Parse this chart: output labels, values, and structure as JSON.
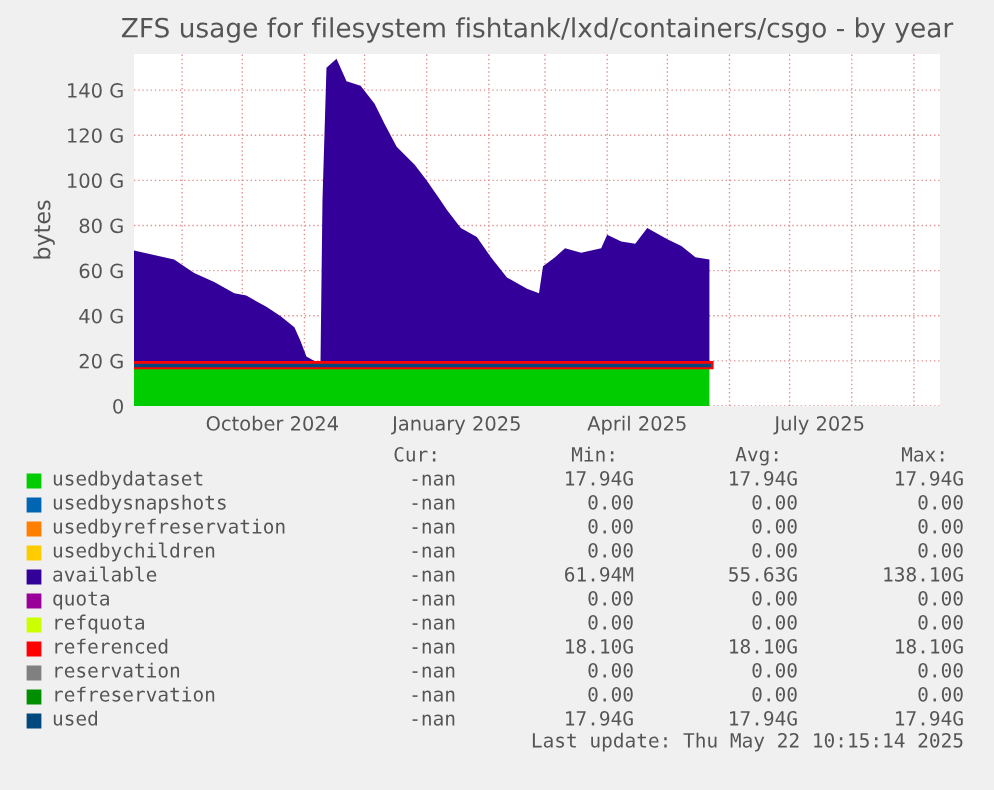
{
  "chart_data": {
    "type": "area",
    "title": "ZFS usage for filesystem fishtank/lxd/containers/csgo - by year",
    "ylabel": "bytes",
    "stacked": true,
    "grid": true,
    "legend": "bottom",
    "x": [
      "2024-08-08",
      "2024-08-18",
      "2024-08-28",
      "2024-09-07",
      "2024-09-17",
      "2024-09-27",
      "2024-10-03",
      "2024-10-13",
      "2024-10-20",
      "2024-10-27",
      "2024-10-30",
      "2024-11-02",
      "2024-11-06",
      "2024-11-09",
      "2024-11-10",
      "2024-11-12",
      "2024-11-17",
      "2024-11-22",
      "2024-11-29",
      "2024-12-06",
      "2024-12-11",
      "2024-12-17",
      "2024-12-26",
      "2025-01-01",
      "2025-01-08",
      "2025-01-11",
      "2025-01-18",
      "2025-01-26",
      "2025-02-02",
      "2025-02-10",
      "2025-02-20",
      "2025-02-26",
      "2025-02-28",
      "2025-03-06",
      "2025-03-11",
      "2025-03-19",
      "2025-03-29",
      "2025-04-01",
      "2025-04-08",
      "2025-04-15",
      "2025-04-21",
      "2025-05-01",
      "2025-05-08",
      "2025-05-15",
      "2025-05-22"
    ],
    "xlim": [
      "2024-08-08",
      "2025-09-14"
    ],
    "xticks": [
      {
        "value": "2024-09-01",
        "label": null
      },
      {
        "value": "2024-10-01",
        "label": null
      },
      {
        "value": "2024-11-01",
        "label": null
      },
      {
        "value": "2024-12-01",
        "label": null
      },
      {
        "value": "2025-01-01",
        "label": null
      },
      {
        "value": "2025-02-01",
        "label": null
      },
      {
        "value": "2025-03-01",
        "label": null
      },
      {
        "value": "2025-04-01",
        "label": null
      },
      {
        "value": "2025-05-01",
        "label": null
      },
      {
        "value": "2025-06-01",
        "label": null
      },
      {
        "value": "2025-07-01",
        "label": null
      },
      {
        "value": "2025-08-01",
        "label": null
      },
      {
        "value": "2025-09-01",
        "label": null
      },
      {
        "value": "2024-10-16",
        "label": "October 2024"
      },
      {
        "value": "2025-01-16",
        "label": "January 2025"
      },
      {
        "value": "2025-04-16",
        "label": "April 2025"
      },
      {
        "value": "2025-07-16",
        "label": "July 2025"
      }
    ],
    "ylim": [
      0,
      156
    ],
    "yticks": [
      0,
      {
        "value": 20,
        "label": "20 G"
      },
      {
        "value": 40,
        "label": "40 G"
      },
      {
        "value": 60,
        "label": "60 G"
      },
      {
        "value": 80,
        "label": "80 G"
      },
      {
        "value": 100,
        "label": "100 G"
      },
      {
        "value": 120,
        "label": "120 G"
      },
      {
        "value": 140,
        "label": "140 G"
      }
    ],
    "series": [
      {
        "name": "usedbydataset",
        "color": "#00cc00",
        "values": [
          17.94,
          17.94,
          17.94,
          17.94,
          17.94,
          17.94,
          17.94,
          17.94,
          17.94,
          17.94,
          17.94,
          17.94,
          17.94,
          17.94,
          17.94,
          17.94,
          17.94,
          17.94,
          17.94,
          17.94,
          17.94,
          17.94,
          17.94,
          17.94,
          17.94,
          17.94,
          17.94,
          17.94,
          17.94,
          17.94,
          17.94,
          17.94,
          17.94,
          17.94,
          17.94,
          17.94,
          17.94,
          17.94,
          17.94,
          17.94,
          17.94,
          17.94,
          17.94,
          17.94,
          17.94
        ]
      },
      {
        "name": "usedbysnapshots",
        "color": "#0066b3",
        "values": [
          null,
          null,
          null,
          null,
          null,
          null,
          null,
          null,
          null,
          null,
          null,
          null,
          null,
          null,
          null,
          null,
          null,
          null,
          null,
          null,
          null,
          null,
          null,
          null,
          null,
          null,
          null,
          null,
          null,
          null,
          null,
          null,
          null,
          null,
          null,
          null,
          null,
          null,
          null,
          null,
          null,
          null,
          null,
          null,
          null
        ]
      },
      {
        "name": "usedbyrefreservation",
        "color": "#ff8000",
        "values": [
          null,
          null,
          null,
          null,
          null,
          null,
          null,
          null,
          null,
          null,
          null,
          null,
          null,
          null,
          null,
          null,
          null,
          null,
          null,
          null,
          null,
          null,
          null,
          null,
          null,
          null,
          null,
          null,
          null,
          null,
          null,
          null,
          null,
          null,
          null,
          null,
          null,
          null,
          null,
          null,
          null,
          null,
          null,
          null,
          null
        ]
      },
      {
        "name": "usedbychildren",
        "color": "#ffcc00",
        "values": [
          null,
          null,
          null,
          null,
          null,
          null,
          null,
          null,
          null,
          null,
          null,
          null,
          null,
          null,
          null,
          null,
          null,
          null,
          null,
          null,
          null,
          null,
          null,
          null,
          null,
          null,
          null,
          null,
          null,
          null,
          null,
          null,
          null,
          null,
          null,
          null,
          null,
          null,
          null,
          null,
          null,
          null,
          null,
          null,
          null
        ]
      },
      {
        "name": "available",
        "color": "#330099",
        "values": [
          51,
          49,
          47,
          41,
          37,
          32,
          31,
          26,
          22,
          17,
          11,
          4,
          2,
          0,
          73,
          132,
          136,
          126,
          124,
          116,
          107,
          97,
          89,
          82,
          73,
          69,
          61,
          57,
          48,
          39,
          34,
          32,
          44,
          48,
          52,
          50,
          52,
          58,
          55,
          54,
          61,
          56,
          53,
          48,
          47
        ]
      },
      {
        "name": "quota",
        "type": "line",
        "color": "#990099",
        "values": [
          null,
          null,
          null,
          null,
          null,
          null,
          null,
          null,
          null,
          null,
          null,
          null,
          null,
          null,
          null,
          null,
          null,
          null,
          null,
          null,
          null,
          null,
          null,
          null,
          null,
          null,
          null,
          null,
          null,
          null,
          null,
          null,
          null,
          null,
          null,
          null,
          null,
          null,
          null,
          null,
          null,
          null,
          null,
          null,
          null
        ]
      },
      {
        "name": "refquota",
        "type": "line",
        "color": "#ccff00",
        "values": [
          null,
          null,
          null,
          null,
          null,
          null,
          null,
          null,
          null,
          null,
          null,
          null,
          null,
          null,
          null,
          null,
          null,
          null,
          null,
          null,
          null,
          null,
          null,
          null,
          null,
          null,
          null,
          null,
          null,
          null,
          null,
          null,
          null,
          null,
          null,
          null,
          null,
          null,
          null,
          null,
          null,
          null,
          null,
          null,
          null
        ]
      },
      {
        "name": "referenced",
        "type": "line",
        "color": "#ff0000",
        "values": [
          18.1,
          18.1,
          18.1,
          18.1,
          18.1,
          18.1,
          18.1,
          18.1,
          18.1,
          18.1,
          18.1,
          18.1,
          18.1,
          18.1,
          18.1,
          18.1,
          18.1,
          18.1,
          18.1,
          18.1,
          18.1,
          18.1,
          18.1,
          18.1,
          18.1,
          18.1,
          18.1,
          18.1,
          18.1,
          18.1,
          18.1,
          18.1,
          18.1,
          18.1,
          18.1,
          18.1,
          18.1,
          18.1,
          18.1,
          18.1,
          18.1,
          18.1,
          18.1,
          18.1,
          18.1
        ]
      },
      {
        "name": "reservation",
        "type": "line",
        "color": "#808080",
        "values": [
          null,
          null,
          null,
          null,
          null,
          null,
          null,
          null,
          null,
          null,
          null,
          null,
          null,
          null,
          null,
          null,
          null,
          null,
          null,
          null,
          null,
          null,
          null,
          null,
          null,
          null,
          null,
          null,
          null,
          null,
          null,
          null,
          null,
          null,
          null,
          null,
          null,
          null,
          null,
          null,
          null,
          null,
          null,
          null,
          null
        ]
      },
      {
        "name": "refreservation",
        "type": "line",
        "color": "#008f00",
        "values": [
          null,
          null,
          null,
          null,
          null,
          null,
          null,
          null,
          null,
          null,
          null,
          null,
          null,
          null,
          null,
          null,
          null,
          null,
          null,
          null,
          null,
          null,
          null,
          null,
          null,
          null,
          null,
          null,
          null,
          null,
          null,
          null,
          null,
          null,
          null,
          null,
          null,
          null,
          null,
          null,
          null,
          null,
          null,
          null,
          null
        ]
      },
      {
        "name": "used",
        "type": "line",
        "color": "#00487d",
        "values": [
          17.94,
          17.94,
          17.94,
          17.94,
          17.94,
          17.94,
          17.94,
          17.94,
          17.94,
          17.94,
          17.94,
          17.94,
          17.94,
          17.94,
          17.94,
          17.94,
          17.94,
          17.94,
          17.94,
          17.94,
          17.94,
          17.94,
          17.94,
          17.94,
          17.94,
          17.94,
          17.94,
          17.94,
          17.94,
          17.94,
          17.94,
          17.94,
          17.94,
          17.94,
          17.94,
          17.94,
          17.94,
          17.94,
          17.94,
          17.94,
          17.94,
          17.94,
          17.94,
          17.94,
          17.94
        ]
      }
    ],
    "annotations": [
      "Cur:",
      "Min:",
      "Avg:",
      "Max:",
      "-nan",
      "17.94G",
      "17.94G",
      "17.94G",
      "-nan",
      "0.00",
      "0.00",
      "0.00",
      "-nan",
      "0.00",
      "0.00",
      "0.00",
      "-nan",
      "0.00",
      "0.00",
      "0.00",
      "-nan",
      "61.94M",
      "55.63G",
      "138.10G",
      "-nan",
      "0.00",
      "0.00",
      "0.00",
      "-nan",
      "0.00",
      "0.00",
      "0.00",
      "-nan",
      "18.10G",
      "18.10G",
      "18.10G",
      "-nan",
      "0.00",
      "0.00",
      "0.00",
      "-nan",
      "0.00",
      "0.00",
      "0.00",
      "-nan",
      "17.94G",
      "17.94G",
      "17.94G",
      "Last update: Thu May 22 10:15:14 2025"
    ]
  }
}
